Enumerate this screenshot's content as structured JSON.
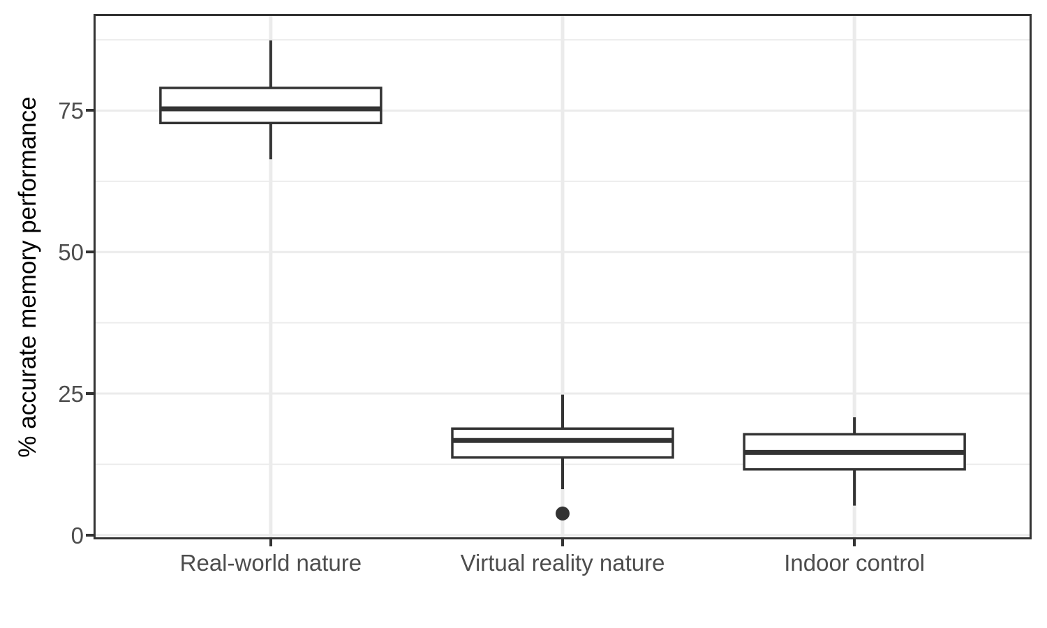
{
  "chart_data": {
    "type": "boxplot",
    "title": "",
    "xlabel": "",
    "ylabel": "% accurate memory performance",
    "categories": [
      "Real-world nature",
      "Virtual reality nature",
      "Indoor control"
    ],
    "series": [
      {
        "name": "Real-world nature",
        "whisker_low": 66.4,
        "q1": 72.8,
        "median": 75.3,
        "q3": 79.0,
        "whisker_high": 87.4,
        "outliers": []
      },
      {
        "name": "Virtual reality nature",
        "whisker_low": 8.1,
        "q1": 13.7,
        "median": 16.7,
        "q3": 18.8,
        "whisker_high": 24.8,
        "outliers": [
          3.8
        ]
      },
      {
        "name": "Indoor control",
        "whisker_low": 5.2,
        "q1": 11.6,
        "median": 14.6,
        "q3": 17.8,
        "whisker_high": 20.8,
        "outliers": []
      }
    ],
    "y_axis": {
      "tick_labels": [
        "0",
        "25",
        "50",
        "75"
      ],
      "ticks": [
        0,
        25,
        50,
        75
      ],
      "minor_gridlines": [
        12.5,
        37.5,
        62.5,
        87.5
      ],
      "lim": [
        -0.4,
        91.7
      ]
    },
    "grid": "major-and-minor",
    "legend_position": "none",
    "colors": {
      "box_stroke": "#333333",
      "box_fill": "#ffffff",
      "median": "#333333",
      "whisker": "#333333",
      "outlier": "#333333",
      "gridline": "#ebebeb",
      "panel_border": "#333333",
      "tick_mark": "#333333",
      "axis_text": "#4d4d4d",
      "axis_title": "#000000",
      "background": "#ffffff"
    }
  }
}
